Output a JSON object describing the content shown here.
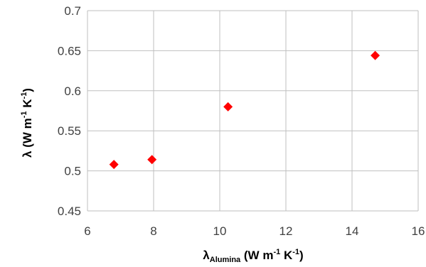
{
  "chart_data": {
    "type": "scatter",
    "title": "",
    "xlabel": {
      "main": "λ",
      "subscript": "Alumina",
      "rest": " (W m",
      "sup1": "-1",
      "mid": " K",
      "sup2": "-1",
      "end": ")"
    },
    "ylabel": {
      "main": "λ (W m",
      "sup1": "-1",
      "mid": " K",
      "sup2": "-1",
      "end": ")"
    },
    "xlim": [
      6,
      16
    ],
    "ylim": [
      0.45,
      0.7
    ],
    "xticks": [
      6,
      8,
      10,
      12,
      14,
      16
    ],
    "xtick_labels": [
      "6",
      "8",
      "10",
      "12",
      "14",
      "16"
    ],
    "yticks": [
      0.45,
      0.5,
      0.55,
      0.6,
      0.65,
      0.7
    ],
    "ytick_labels": [
      "0.45",
      "0.5",
      "0.55",
      "0.6",
      "0.65",
      "0.7"
    ],
    "grid": true,
    "marker": "diamond",
    "marker_color": "#ff0000",
    "grid_color": "#bfbfbf",
    "series": [
      {
        "x": [
          6.8,
          7.95,
          10.25,
          14.7
        ],
        "y": [
          0.508,
          0.514,
          0.58,
          0.644
        ]
      }
    ]
  }
}
